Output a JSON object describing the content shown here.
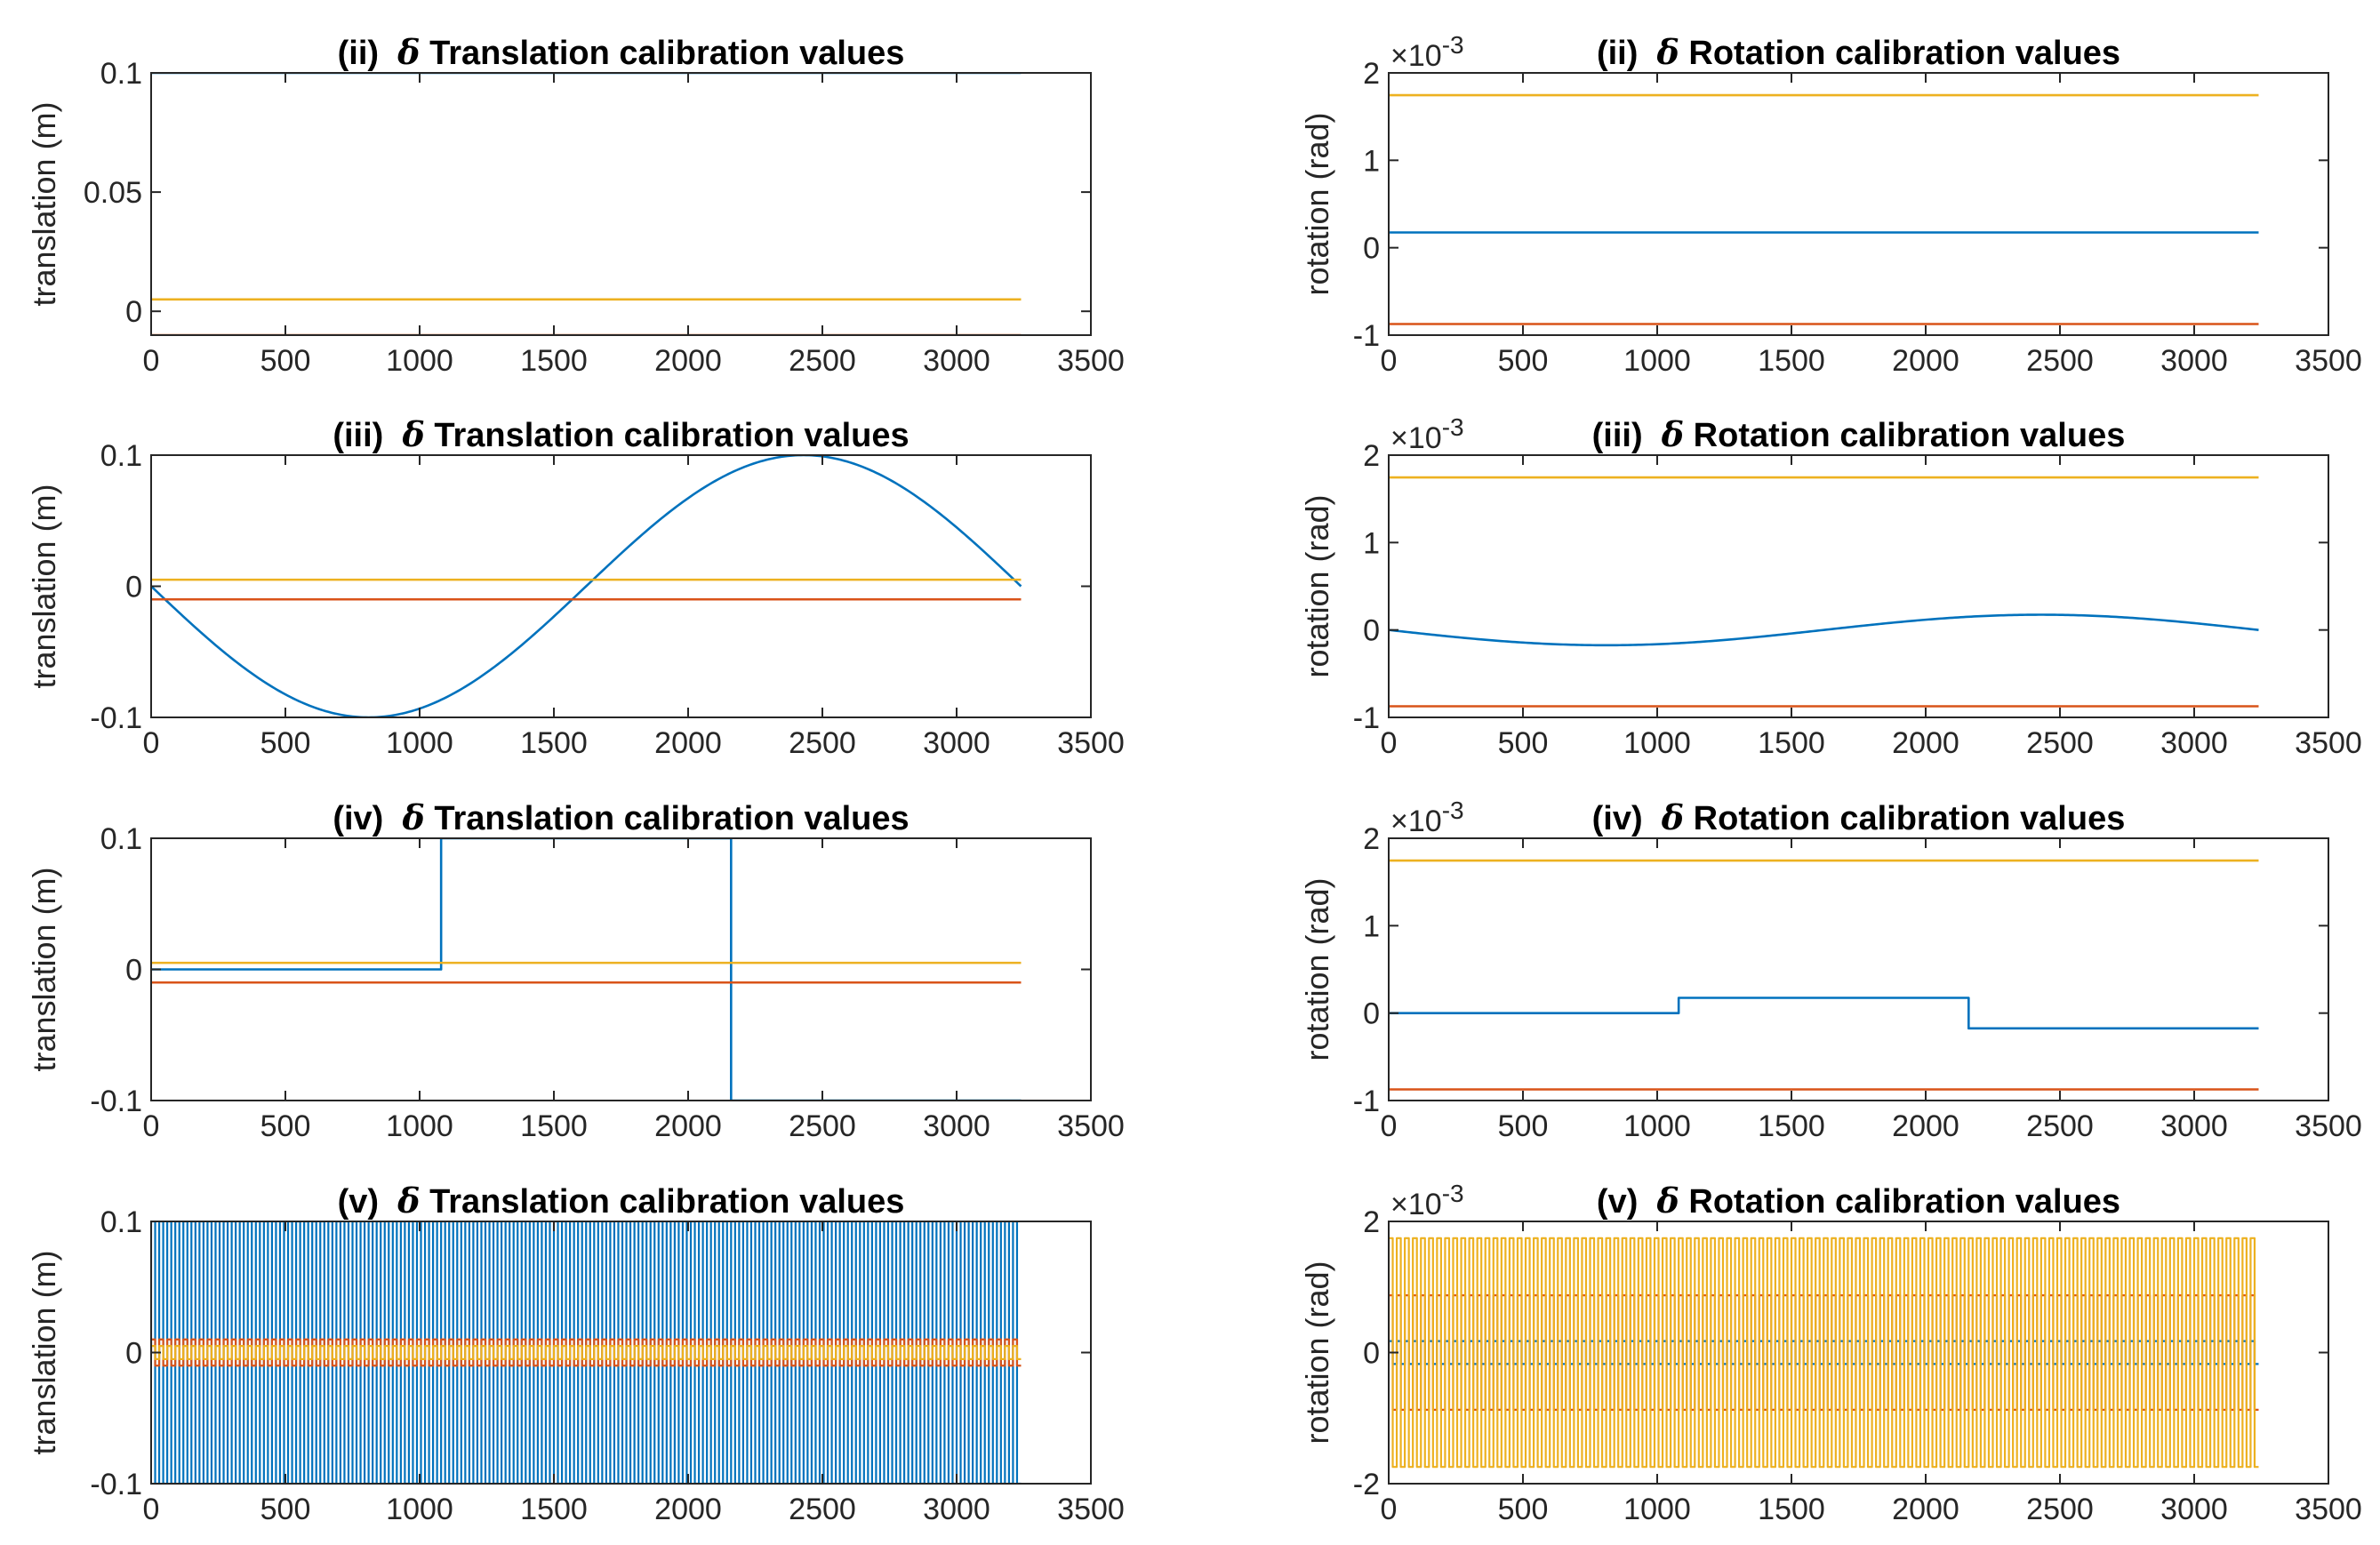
{
  "figure": {
    "panel_count": 8
  },
  "colors": {
    "blue": "#0072BD",
    "red": "#D95319",
    "yellow": "#EDB120"
  },
  "chart_data": [
    {
      "id": "ii-translation",
      "type": "line",
      "title_prefix": "(ii)",
      "delta": "δ",
      "title_text": "Translation calibration values",
      "ylabel": "translation (m)",
      "xlim": [
        0,
        3500
      ],
      "ylim": [
        -0.01,
        0.1
      ],
      "xticks": [
        0,
        500,
        1000,
        1500,
        2000,
        2500,
        3000,
        3500
      ],
      "xtick_labels": [
        "0",
        "500",
        "1000",
        "1500",
        "2000",
        "2500",
        "3000",
        "3500"
      ],
      "yticks": [
        0,
        0.05,
        0.1
      ],
      "ytick_labels": [
        "0",
        "0.05",
        "0.1"
      ],
      "exponent_label": "",
      "series": [
        {
          "name": "blue",
          "color": "#0072BD",
          "kind": "const",
          "value": 0.1,
          "x_end": 3240
        },
        {
          "name": "yellow",
          "color": "#EDB120",
          "kind": "const",
          "value": 0.005,
          "x_end": 3240
        },
        {
          "name": "red",
          "color": "#D95319",
          "kind": "const",
          "value": -0.01,
          "x_end": 3240
        }
      ]
    },
    {
      "id": "ii-rotation",
      "type": "line",
      "title_prefix": "(ii)",
      "delta": "δ",
      "title_text": "Rotation calibration values",
      "ylabel": "rotation (rad)",
      "xlim": [
        0,
        3500
      ],
      "ylim": [
        -1,
        2
      ],
      "xticks": [
        0,
        500,
        1000,
        1500,
        2000,
        2500,
        3000,
        3500
      ],
      "xtick_labels": [
        "0",
        "500",
        "1000",
        "1500",
        "2000",
        "2500",
        "3000",
        "3500"
      ],
      "yticks": [
        -1,
        0,
        1,
        2
      ],
      "ytick_labels": [
        "-1",
        "0",
        "1",
        "2"
      ],
      "exponent_label": "×10",
      "exponent_power": "-3",
      "series": [
        {
          "name": "yellow",
          "color": "#EDB120",
          "kind": "const",
          "value": 1.745,
          "x_end": 3240
        },
        {
          "name": "blue",
          "color": "#0072BD",
          "kind": "const",
          "value": 0.1745,
          "x_end": 3240
        },
        {
          "name": "red",
          "color": "#D95319",
          "kind": "const",
          "value": -0.873,
          "x_end": 3240
        }
      ]
    },
    {
      "id": "iii-translation",
      "type": "line",
      "title_prefix": "(iii)",
      "delta": "δ",
      "title_text": "Translation calibration values",
      "ylabel": "translation (m)",
      "xlim": [
        0,
        3500
      ],
      "ylim": [
        -0.1,
        0.1
      ],
      "xticks": [
        0,
        500,
        1000,
        1500,
        2000,
        2500,
        3000,
        3500
      ],
      "xtick_labels": [
        "0",
        "500",
        "1000",
        "1500",
        "2000",
        "2500",
        "3000",
        "3500"
      ],
      "yticks": [
        -0.1,
        0,
        0.1
      ],
      "ytick_labels": [
        "-0.1",
        "0",
        "0.1"
      ],
      "exponent_label": "",
      "series": [
        {
          "name": "blue",
          "color": "#0072BD",
          "kind": "sine",
          "amplitude": -0.1,
          "period": 3240,
          "x_end": 3240
        },
        {
          "name": "yellow",
          "color": "#EDB120",
          "kind": "const",
          "value": 0.005,
          "x_end": 3240
        },
        {
          "name": "red",
          "color": "#D95319",
          "kind": "const",
          "value": -0.01,
          "x_end": 3240
        }
      ]
    },
    {
      "id": "iii-rotation",
      "type": "line",
      "title_prefix": "(iii)",
      "delta": "δ",
      "title_text": "Rotation calibration values",
      "ylabel": "rotation (rad)",
      "xlim": [
        0,
        3500
      ],
      "ylim": [
        -1,
        2
      ],
      "xticks": [
        0,
        500,
        1000,
        1500,
        2000,
        2500,
        3000,
        3500
      ],
      "xtick_labels": [
        "0",
        "500",
        "1000",
        "1500",
        "2000",
        "2500",
        "3000",
        "3500"
      ],
      "yticks": [
        -1,
        0,
        1,
        2
      ],
      "ytick_labels": [
        "-1",
        "0",
        "1",
        "2"
      ],
      "exponent_label": "×10",
      "exponent_power": "-3",
      "series": [
        {
          "name": "yellow",
          "color": "#EDB120",
          "kind": "const",
          "value": 1.745,
          "x_end": 3240
        },
        {
          "name": "blue",
          "color": "#0072BD",
          "kind": "sine",
          "amplitude": -0.1745,
          "period": 3240,
          "x_end": 3240
        },
        {
          "name": "red",
          "color": "#D95319",
          "kind": "const",
          "value": -0.873,
          "x_end": 3240
        }
      ]
    },
    {
      "id": "iv-translation",
      "type": "line",
      "title_prefix": "(iv)",
      "delta": "δ",
      "title_text": "Translation calibration values",
      "ylabel": "translation (m)",
      "xlim": [
        0,
        3500
      ],
      "ylim": [
        -0.1,
        0.1
      ],
      "xticks": [
        0,
        500,
        1000,
        1500,
        2000,
        2500,
        3000,
        3500
      ],
      "xtick_labels": [
        "0",
        "500",
        "1000",
        "1500",
        "2000",
        "2500",
        "3000",
        "3500"
      ],
      "yticks": [
        -0.1,
        0,
        0.1
      ],
      "ytick_labels": [
        "-0.1",
        "0",
        "0.1"
      ],
      "exponent_label": "",
      "series": [
        {
          "name": "blue",
          "color": "#0072BD",
          "kind": "steps",
          "x": [
            0,
            1080,
            1080,
            2160,
            2160,
            3240
          ],
          "y": [
            0,
            0,
            0.1,
            0.1,
            -0.1,
            -0.1
          ]
        },
        {
          "name": "yellow",
          "color": "#EDB120",
          "kind": "const",
          "value": 0.005,
          "x_end": 3240
        },
        {
          "name": "red",
          "color": "#D95319",
          "kind": "const",
          "value": -0.01,
          "x_end": 3240
        }
      ]
    },
    {
      "id": "iv-rotation",
      "type": "line",
      "title_prefix": "(iv)",
      "delta": "δ",
      "title_text": "Rotation calibration values",
      "ylabel": "rotation (rad)",
      "xlim": [
        0,
        3500
      ],
      "ylim": [
        -1,
        2
      ],
      "xticks": [
        0,
        500,
        1000,
        1500,
        2000,
        2500,
        3000,
        3500
      ],
      "xtick_labels": [
        "0",
        "500",
        "1000",
        "1500",
        "2000",
        "2500",
        "3000",
        "3500"
      ],
      "yticks": [
        -1,
        0,
        1,
        2
      ],
      "ytick_labels": [
        "-1",
        "0",
        "1",
        "2"
      ],
      "exponent_label": "×10",
      "exponent_power": "-3",
      "series": [
        {
          "name": "yellow",
          "color": "#EDB120",
          "kind": "const",
          "value": 1.745,
          "x_end": 3240
        },
        {
          "name": "blue",
          "color": "#0072BD",
          "kind": "steps",
          "x": [
            0,
            1080,
            1080,
            2160,
            2160,
            3240
          ],
          "y": [
            0,
            0,
            0.1745,
            0.1745,
            -0.1745,
            -0.1745
          ]
        },
        {
          "name": "red",
          "color": "#D95319",
          "kind": "const",
          "value": -0.873,
          "x_end": 3240
        }
      ]
    },
    {
      "id": "v-translation",
      "type": "line",
      "title_prefix": "(v)",
      "delta": "δ",
      "title_text": "Translation calibration values",
      "ylabel": "translation (m)",
      "xlim": [
        0,
        3500
      ],
      "ylim": [
        -0.1,
        0.1
      ],
      "xticks": [
        0,
        500,
        1000,
        1500,
        2000,
        2500,
        3000,
        3500
      ],
      "xtick_labels": [
        "0",
        "500",
        "1000",
        "1500",
        "2000",
        "2500",
        "3000",
        "3500"
      ],
      "yticks": [
        -0.1,
        0,
        0.1
      ],
      "ytick_labels": [
        "-0.1",
        "0",
        "0.1"
      ],
      "exponent_label": "",
      "series": [
        {
          "name": "blue",
          "color": "#0072BD",
          "kind": "square",
          "amplitude": 0.1,
          "half_period": 15,
          "x_end": 3240
        },
        {
          "name": "red",
          "color": "#D95319",
          "kind": "square",
          "amplitude": 0.01,
          "half_period": 15,
          "x_end": 3240
        },
        {
          "name": "yellow",
          "color": "#EDB120",
          "kind": "square",
          "amplitude": 0.005,
          "half_period": 15,
          "x_end": 3240
        }
      ]
    },
    {
      "id": "v-rotation",
      "type": "line",
      "title_prefix": "(v)",
      "delta": "δ",
      "title_text": "Rotation calibration values",
      "ylabel": "rotation (rad)",
      "xlim": [
        0,
        3500
      ],
      "ylim": [
        -2,
        2
      ],
      "xticks": [
        0,
        500,
        1000,
        1500,
        2000,
        2500,
        3000,
        3500
      ],
      "xtick_labels": [
        "0",
        "500",
        "1000",
        "1500",
        "2000",
        "2500",
        "3000",
        "3500"
      ],
      "yticks": [
        -2,
        0,
        2
      ],
      "ytick_labels": [
        "-2",
        "0",
        "2"
      ],
      "exponent_label": "×10",
      "exponent_power": "-3",
      "series": [
        {
          "name": "blue",
          "color": "#0072BD",
          "kind": "square",
          "amplitude": 0.1745,
          "half_period": 15,
          "x_end": 3240
        },
        {
          "name": "red",
          "color": "#D95319",
          "kind": "square",
          "amplitude": 0.873,
          "half_period": 15,
          "x_end": 3240
        },
        {
          "name": "yellow",
          "color": "#EDB120",
          "kind": "square",
          "amplitude": 1.745,
          "half_period": 15,
          "x_end": 3240
        }
      ]
    }
  ]
}
